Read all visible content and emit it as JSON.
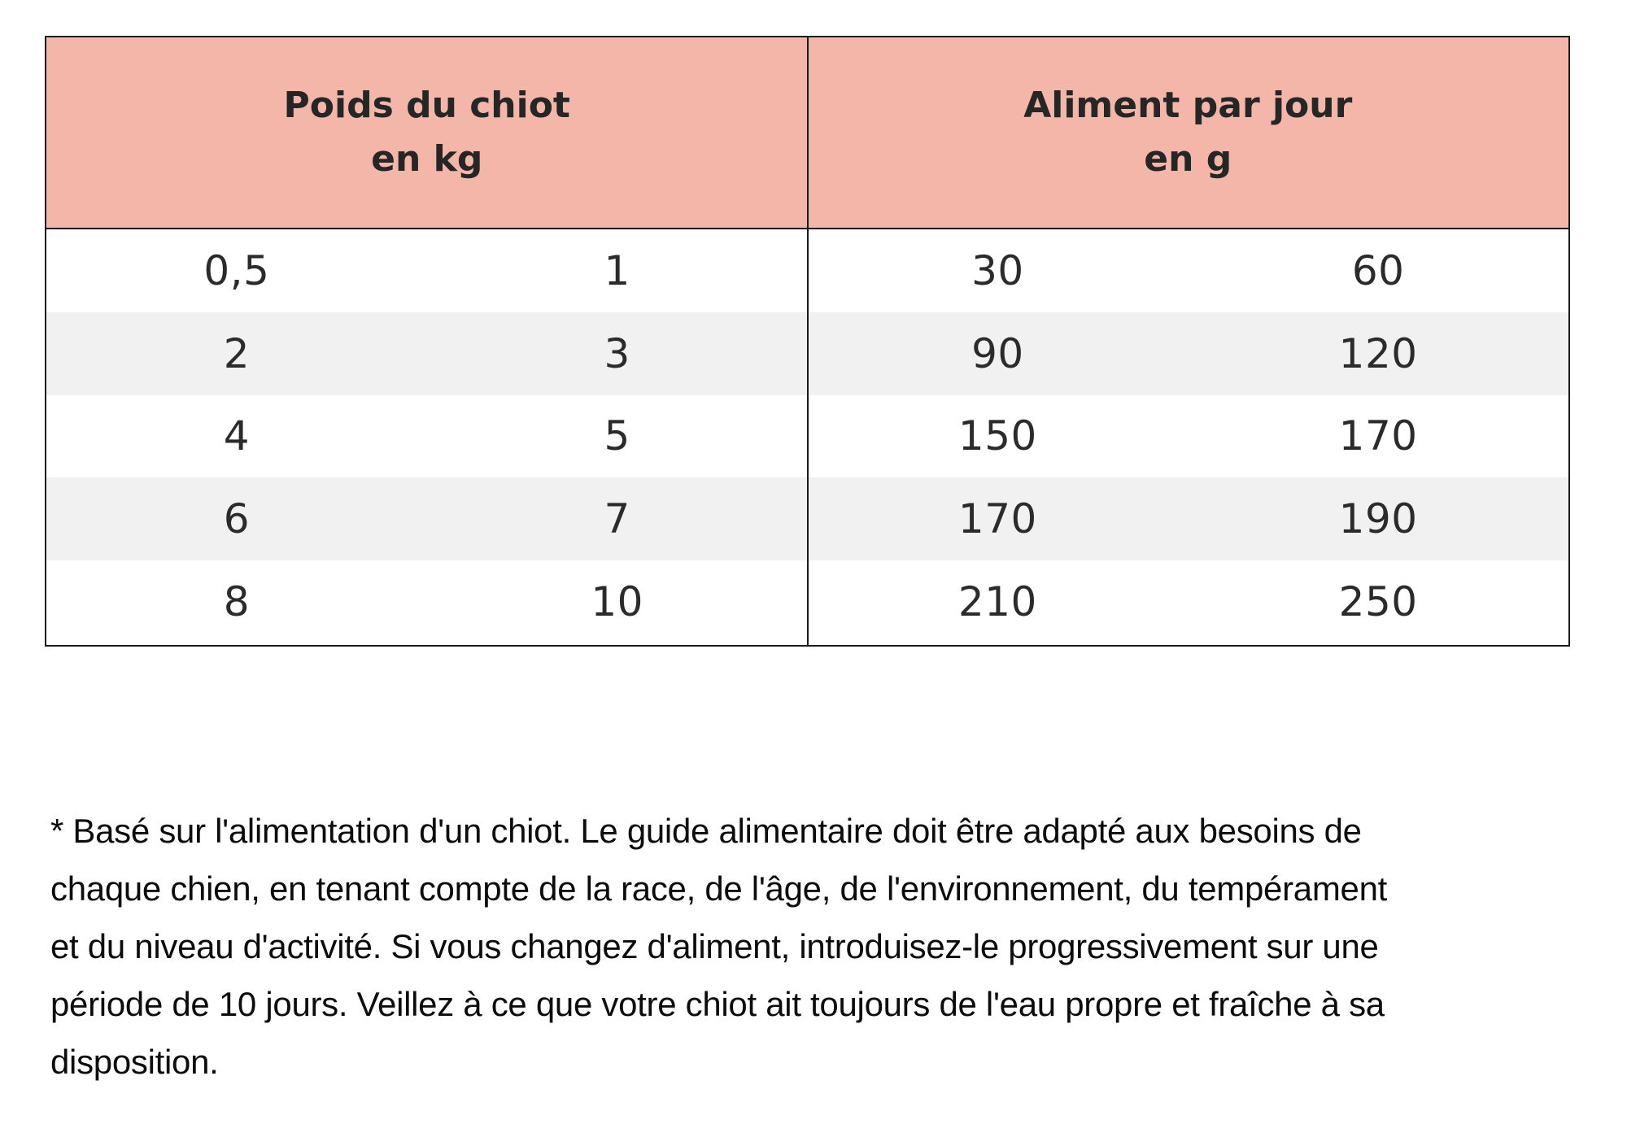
{
  "table": {
    "headers": [
      {
        "line1": "Poids du chiot",
        "line2": "en kg"
      },
      {
        "line1": "Aliment par jour",
        "line2": "en g"
      }
    ],
    "rows": [
      [
        "0,5",
        "1",
        "30",
        "60"
      ],
      [
        "2",
        "3",
        "90",
        "120"
      ],
      [
        "4",
        "5",
        "150",
        "170"
      ],
      [
        "6",
        "7",
        "170",
        "190"
      ],
      [
        "8",
        "10",
        "210",
        "250"
      ]
    ]
  },
  "footnote": {
    "lines": [
      "* Basé sur l'alimentation d'un chiot. Le guide alimentaire doit être adapté aux besoins de",
      "chaque chien, en tenant compte de la race, de l'âge, de l'environnement, du tempérament",
      "et du niveau d'activité. Si vous changez d'aliment, introduisez-le progressivement sur une",
      "période de 10 jours. Veillez à ce que votre chiot ait toujours de l'eau propre et fraîche à sa",
      "disposition."
    ]
  },
  "colors": {
    "header_bg": "#F4B6A9",
    "row_alt_bg": "#F1F1F1",
    "border": "#1b1b1b",
    "table_text": "#2b2b2b",
    "header_text": "#262626",
    "footnote_text": "#0c0c0c"
  }
}
